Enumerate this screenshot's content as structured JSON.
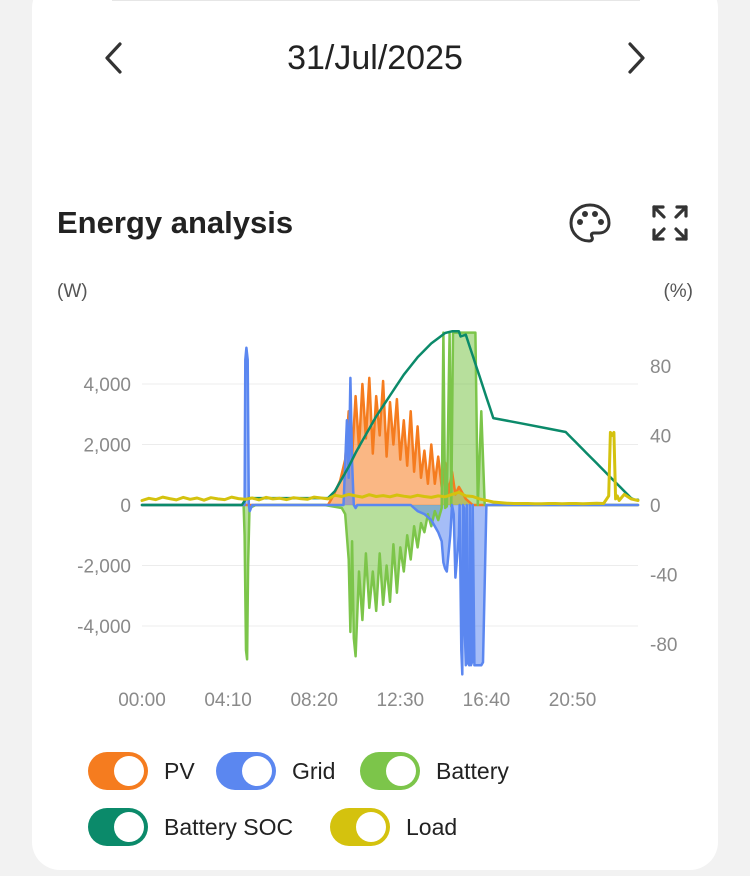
{
  "header": {
    "date": "31/Jul/2025"
  },
  "section": {
    "title": "Energy analysis"
  },
  "icons": {
    "prev": "chevron-left-icon",
    "next": "chevron-right-icon",
    "theme": "palette-icon",
    "fullscreen": "expand-icon"
  },
  "units": {
    "left": "(W)",
    "right": "(%)"
  },
  "legend": [
    {
      "label": "PV",
      "color": "#f57c1f",
      "on": true
    },
    {
      "label": "Grid",
      "color": "#5b87f0",
      "on": true
    },
    {
      "label": "Battery",
      "color": "#7cc54a",
      "on": true
    },
    {
      "label": "Battery SOC",
      "color": "#0b8a6a",
      "on": true
    },
    {
      "label": "Load",
      "color": "#d4c20e",
      "on": true
    }
  ],
  "chart_data": {
    "type": "line",
    "x_ticks": [
      "00:00",
      "04:10",
      "08:20",
      "12:30",
      "16:40",
      "20:50"
    ],
    "x_range_minutes": [
      0,
      1440
    ],
    "y_left": {
      "label": "(W)",
      "ticks": [
        -4000,
        -2000,
        0,
        2000,
        4000
      ],
      "tick_labels": [
        "-4,000",
        "-2,000",
        "0",
        "2,000",
        "4,000"
      ],
      "range": [
        -5700,
        5700
      ]
    },
    "y_right": {
      "label": "(%)",
      "ticks": [
        -80,
        -40,
        0,
        40,
        80
      ],
      "tick_labels": [
        "-80",
        "-40",
        "0",
        "40",
        "80"
      ],
      "range": [
        -100,
        100
      ]
    },
    "grid": true,
    "legend_position": "bottom",
    "series": [
      {
        "name": "PV",
        "color": "#f57c1f",
        "area": true,
        "axis": "left",
        "x": [
          0,
          540,
          555,
          575,
          590,
          600,
          610,
          620,
          630,
          640,
          650,
          660,
          670,
          680,
          690,
          700,
          710,
          720,
          730,
          740,
          750,
          760,
          770,
          780,
          790,
          800,
          810,
          820,
          830,
          840,
          850,
          860,
          870,
          880,
          890,
          900,
          910,
          920,
          940,
          960,
          1440
        ],
        "y": [
          0,
          0,
          300,
          800,
          1500,
          3100,
          1600,
          3600,
          1900,
          4000,
          2200,
          4200,
          1700,
          3600,
          2300,
          4100,
          1600,
          3400,
          2000,
          3500,
          1500,
          2800,
          1300,
          3100,
          1100,
          2600,
          900,
          1800,
          700,
          2000,
          700,
          1600,
          600,
          1400,
          400,
          1100,
          350,
          600,
          200,
          0,
          0
        ]
      },
      {
        "name": "Grid",
        "color": "#5b87f0",
        "area": true,
        "axis": "left",
        "x": [
          0,
          298,
          300,
          303,
          307,
          310,
          313,
          320,
          585,
          595,
          600,
          605,
          610,
          615,
          620,
          625,
          780,
          800,
          820,
          840,
          860,
          870,
          875,
          880,
          885,
          895,
          900,
          905,
          910,
          920,
          922,
          927,
          930,
          932,
          935,
          937,
          940,
          943,
          945,
          950,
          952,
          955,
          958,
          960,
          965,
          972,
          975,
          980,
          985,
          990,
          1000,
          1440
        ],
        "y": [
          0,
          0,
          4800,
          5200,
          4800,
          0,
          -200,
          0,
          0,
          2800,
          900,
          4200,
          1400,
          0,
          -100,
          0,
          0,
          -200,
          -300,
          -500,
          -900,
          -1200,
          -1900,
          -2100,
          -2200,
          -1000,
          0,
          -300,
          -2400,
          -1000,
          0,
          -4800,
          -5600,
          0,
          -100,
          -4000,
          -5300,
          0,
          -5200,
          -5300,
          0,
          -5300,
          -5200,
          0,
          -5300,
          -5300,
          -5300,
          -5300,
          -5300,
          -5200,
          0,
          0
        ]
      },
      {
        "name": "Battery",
        "color": "#7cc54a",
        "area": true,
        "axis": "left",
        "x": [
          0,
          295,
          298,
          302,
          305,
          308,
          312,
          330,
          400,
          530,
          580,
          590,
          600,
          605,
          610,
          615,
          620,
          630,
          640,
          650,
          660,
          670,
          680,
          690,
          700,
          710,
          720,
          730,
          740,
          750,
          760,
          770,
          780,
          790,
          800,
          810,
          820,
          830,
          840,
          850,
          860,
          870,
          875,
          880,
          885,
          893,
          898,
          903,
          908,
          913,
          916,
          920,
          925,
          928,
          931,
          934,
          937,
          941,
          944,
          948,
          952,
          957,
          963,
          968,
          975,
          985,
          995,
          1440
        ],
        "y": [
          0,
          0,
          -1000,
          -4800,
          -5100,
          -2000,
          -100,
          0,
          0,
          0,
          -100,
          -300,
          -1800,
          -4200,
          -1200,
          -4400,
          -5000,
          -2200,
          -3800,
          -1600,
          -3400,
          -2200,
          -3500,
          -1600,
          -3300,
          -2000,
          -3200,
          -1300,
          -2900,
          -1400,
          -2200,
          -1000,
          -1800,
          -700,
          -1400,
          -600,
          -900,
          -300,
          -700,
          -200,
          -500,
          -100,
          5700,
          -100,
          -50,
          5700,
          -50,
          5700,
          5700,
          5700,
          5700,
          5700,
          5700,
          5700,
          5700,
          5700,
          5700,
          5700,
          5700,
          5700,
          5700,
          5700,
          5700,
          5700,
          0,
          3100,
          0,
          0
        ]
      },
      {
        "name": "Battery SOC",
        "color": "#0b8a6a",
        "area": false,
        "axis": "right",
        "x": [
          0,
          290,
          300,
          310,
          540,
          560,
          580,
          600,
          620,
          640,
          660,
          680,
          700,
          720,
          740,
          760,
          780,
          800,
          820,
          840,
          860,
          880,
          900,
          910,
          920,
          925,
          940,
          950,
          960,
          970,
          980,
          990,
          1000,
          1010,
          1020,
          1100,
          1180,
          1230,
          1240,
          1250,
          1260,
          1270,
          1280,
          1290,
          1300,
          1310,
          1320,
          1330,
          1340,
          1350,
          1360,
          1370,
          1380,
          1390,
          1400,
          1410,
          1420,
          1430,
          1440
        ],
        "y": [
          0,
          0,
          3,
          4,
          4,
          8,
          15,
          22,
          30,
          37,
          44,
          51,
          57,
          63,
          69,
          75,
          80,
          85,
          89,
          93,
          96,
          99,
          100,
          100,
          100,
          97,
          98,
          92,
          86,
          80,
          74,
          68,
          62,
          56,
          50,
          47,
          44,
          42,
          40,
          38,
          36,
          34,
          32,
          30,
          28,
          26,
          24,
          22,
          20,
          18,
          16,
          14,
          12,
          10,
          8,
          6,
          4,
          3,
          3
        ]
      },
      {
        "name": "Load",
        "color": "#d4c20e",
        "area": false,
        "axis": "left",
        "x": [
          0,
          20,
          40,
          60,
          80,
          100,
          120,
          140,
          160,
          180,
          200,
          220,
          240,
          260,
          280,
          300,
          320,
          340,
          360,
          380,
          400,
          420,
          440,
          460,
          480,
          500,
          520,
          540,
          560,
          580,
          600,
          620,
          640,
          660,
          680,
          700,
          720,
          740,
          760,
          780,
          800,
          820,
          840,
          860,
          880,
          900,
          920,
          940,
          960,
          980,
          1000,
          1020,
          1040,
          1060,
          1080,
          1100,
          1120,
          1140,
          1160,
          1180,
          1200,
          1220,
          1240,
          1260,
          1280,
          1300,
          1320,
          1340,
          1355,
          1360,
          1365,
          1370,
          1375,
          1380,
          1385,
          1400,
          1420,
          1440
        ],
        "y": [
          150,
          220,
          180,
          260,
          210,
          170,
          250,
          190,
          230,
          160,
          240,
          200,
          180,
          260,
          210,
          190,
          230,
          170,
          250,
          200,
          220,
          180,
          240,
          210,
          190,
          260,
          230,
          200,
          320,
          280,
          350,
          300,
          260,
          340,
          280,
          310,
          270,
          330,
          290,
          260,
          320,
          280,
          250,
          300,
          270,
          350,
          420,
          300,
          280,
          200,
          150,
          100,
          80,
          60,
          50,
          50,
          50,
          40,
          40,
          50,
          50,
          40,
          50,
          50,
          40,
          50,
          60,
          50,
          300,
          2400,
          2300,
          2400,
          200,
          300,
          150,
          350,
          200,
          150
        ]
      }
    ]
  }
}
